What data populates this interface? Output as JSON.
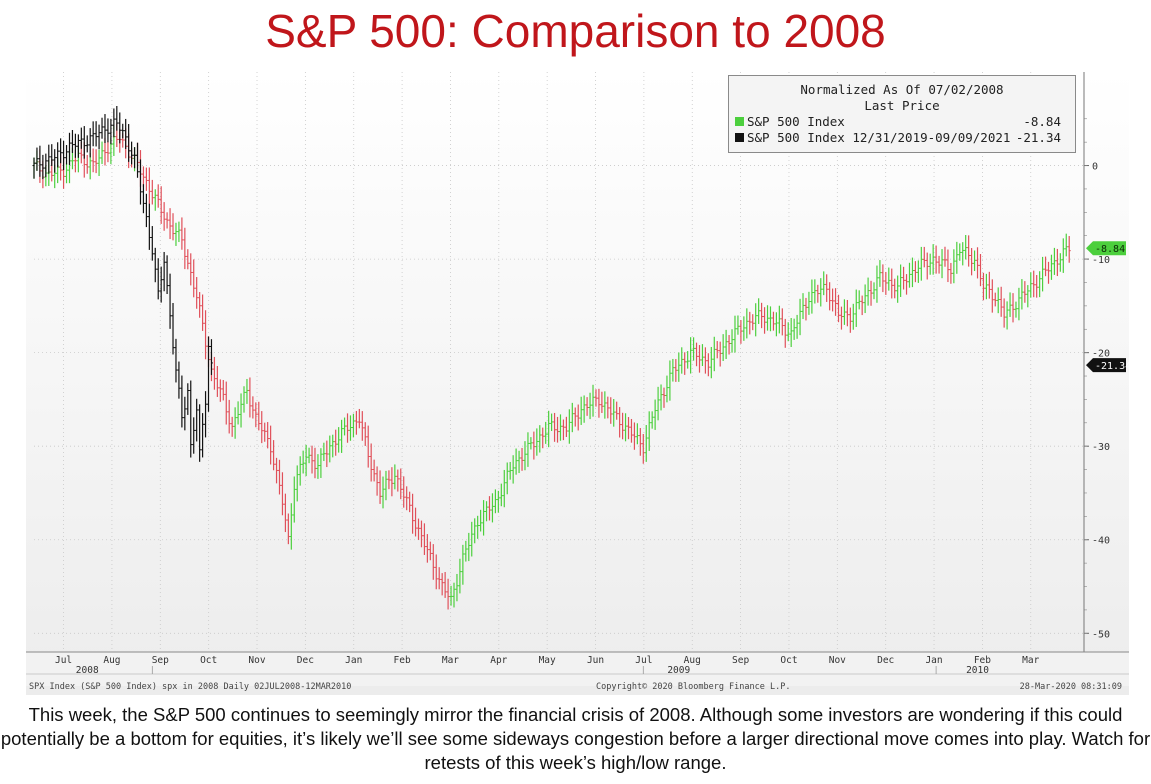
{
  "title": "S&P 500: Comparison to 2008",
  "legend": {
    "header_line1": "Normalized As Of 07/02/2008",
    "header_line2": "Last Price",
    "items": [
      {
        "label": "S&P 500 Index",
        "value": "-8.84",
        "color": "#4ccf3d"
      },
      {
        "label": "S&P 500 Index 12/31/2019-09/09/2021",
        "value": "-21.34",
        "color": "#111111"
      }
    ]
  },
  "footer": {
    "left": "SPX Index (S&P 500 Index) spx in 2008  Daily 02JUL2008-12MAR2010",
    "center": "Copyright© 2020 Bloomberg Finance L.P.",
    "right": "28-Mar-2020 08:31:09"
  },
  "caption": "This week, the S&P 500 continues to seemingly mirror the financial crisis of 2008. Although some investors are wondering if this could potentially be a bottom for equities, it’s likely we’ll see some sideways congestion before a larger directional move comes into play. Watch for retests of this week’s high/low range.",
  "chart_data": {
    "type": "line",
    "x_unit": "trading day",
    "ylim": [
      -52,
      10
    ],
    "y_ticks": [
      0,
      -10,
      -20,
      -30,
      -40,
      -50
    ],
    "grid": true,
    "month_labels": [
      "Jul",
      "Aug",
      "Sep",
      "Oct",
      "Nov",
      "Dec",
      "Jan",
      "Feb",
      "Mar",
      "Apr",
      "May",
      "Jun",
      "Jul",
      "Aug",
      "Sep",
      "Oct",
      "Nov",
      "Dec",
      "Jan",
      "Feb",
      "Mar"
    ],
    "year_labels": [
      "2008",
      "2009",
      "2010"
    ],
    "end_labels": [
      "-8.84",
      "-21.34"
    ],
    "series": [
      {
        "name": "S&P 500 Index",
        "color": "#4ccf3d",
        "down_color": "#e0505a",
        "points": [
          [
            0,
            0
          ],
          [
            5,
            -1
          ],
          [
            10,
            -0.5
          ],
          [
            15,
            1
          ],
          [
            20,
            0
          ],
          [
            25,
            2
          ],
          [
            29,
            3
          ],
          [
            32,
            1.5
          ],
          [
            35,
            0
          ],
          [
            40,
            -3
          ],
          [
            45,
            -6
          ],
          [
            50,
            -8
          ],
          [
            55,
            -14
          ],
          [
            60,
            -22
          ],
          [
            64,
            -25
          ],
          [
            67,
            -28
          ],
          [
            72,
            -24
          ],
          [
            75,
            -27
          ],
          [
            80,
            -30
          ],
          [
            84,
            -36
          ],
          [
            86,
            -40
          ],
          [
            88,
            -34
          ],
          [
            92,
            -31
          ],
          [
            96,
            -32
          ],
          [
            100,
            -30
          ],
          [
            106,
            -28
          ],
          [
            110,
            -27
          ],
          [
            113,
            -31
          ],
          [
            117,
            -35
          ],
          [
            122,
            -33
          ],
          [
            126,
            -36
          ],
          [
            130,
            -39
          ],
          [
            134,
            -42
          ],
          [
            138,
            -45
          ],
          [
            141,
            -46.5
          ],
          [
            145,
            -42
          ],
          [
            150,
            -38
          ],
          [
            156,
            -36
          ],
          [
            162,
            -32
          ],
          [
            168,
            -30
          ],
          [
            174,
            -28
          ],
          [
            180,
            -28
          ],
          [
            185,
            -26
          ],
          [
            191,
            -25
          ],
          [
            197,
            -27
          ],
          [
            203,
            -29
          ],
          [
            206,
            -30
          ],
          [
            210,
            -26
          ],
          [
            216,
            -22
          ],
          [
            222,
            -20
          ],
          [
            228,
            -21
          ],
          [
            234,
            -19
          ],
          [
            240,
            -17
          ],
          [
            246,
            -16
          ],
          [
            252,
            -17
          ],
          [
            256,
            -18
          ],
          [
            262,
            -14
          ],
          [
            268,
            -13
          ],
          [
            272,
            -16
          ],
          [
            276,
            -16
          ],
          [
            281,
            -14
          ],
          [
            286,
            -12
          ],
          [
            292,
            -13
          ],
          [
            298,
            -11
          ],
          [
            304,
            -10
          ],
          [
            310,
            -11
          ],
          [
            313,
            -9
          ],
          [
            318,
            -10
          ],
          [
            321,
            -13
          ],
          [
            325,
            -14
          ],
          [
            328,
            -16
          ],
          [
            334,
            -14
          ],
          [
            340,
            -12
          ],
          [
            346,
            -10
          ],
          [
            350,
            -8.84
          ]
        ]
      },
      {
        "name": "S&P 500 Index 12/31/2019-09/09/2021",
        "color": "#111111",
        "points": [
          [
            0,
            0
          ],
          [
            4,
            0.5
          ],
          [
            8,
            1
          ],
          [
            12,
            2
          ],
          [
            16,
            2.5
          ],
          [
            20,
            3
          ],
          [
            24,
            4
          ],
          [
            28,
            4.5
          ],
          [
            31,
            3
          ],
          [
            34,
            0.5
          ],
          [
            37,
            -4
          ],
          [
            40,
            -9
          ],
          [
            42,
            -14
          ],
          [
            44,
            -10
          ],
          [
            46,
            -16
          ],
          [
            48,
            -22
          ],
          [
            50,
            -27
          ],
          [
            52,
            -24
          ],
          [
            53,
            -30
          ],
          [
            55,
            -26
          ],
          [
            56,
            -31
          ],
          [
            58,
            -25
          ],
          [
            59,
            -19
          ],
          [
            60,
            -21.34
          ]
        ]
      }
    ]
  }
}
